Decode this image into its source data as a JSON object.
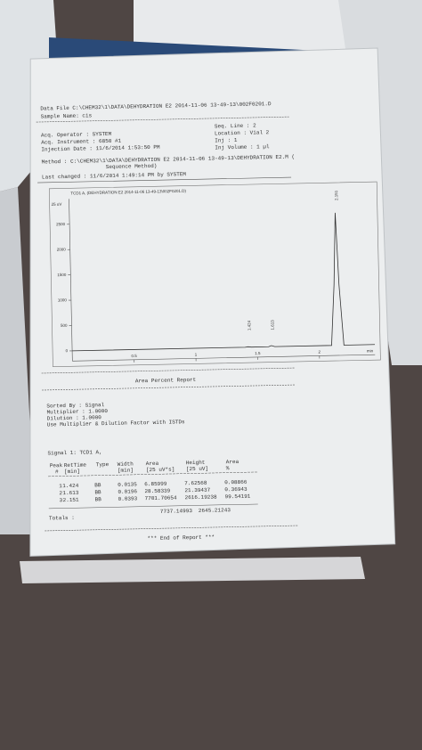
{
  "header": {
    "data_file": "Data File C:\\CHEM32\\1\\DATA\\DEHYDRATION E2 2014-11-06 13-49-13\\002F0201.D",
    "sample_name": "Sample Name: cis"
  },
  "meta": {
    "left": [
      "Acq. Operator   : SYSTEM",
      "Acq. Instrument : 6850 #1",
      "Injection Date  : 11/6/2014 1:53:50 PM"
    ],
    "right": [
      "Seq. Line :  2",
      "Location : Vial 2",
      "Inj :  1",
      "Inj Volume : 1 µl"
    ],
    "method": [
      "Method          : C:\\CHEM32\\1\\DATA\\DEHYDRATION E2 2014-11-06 13-49-13\\DEHYDRATION E2.M (",
      "Sequence Method)"
    ],
    "last_changed": "Last changed    : 11/6/2014 1:49:14 PM by SYSTEM"
  },
  "chart_data": {
    "type": "line",
    "title": "TCD1 A, (DEHYDRATION E2 2014-11-06 13-49-13\\002F0201.D)",
    "y_label": "25 uV",
    "x_label": "min",
    "x": [
      0,
      1.4,
      1.424,
      1.45,
      1.59,
      1.613,
      1.64,
      2.1,
      2.13,
      2.151,
      2.17,
      2.2,
      2.45
    ],
    "series": [
      {
        "name": "TCD1 A",
        "color": "#333333",
        "values": [
          0,
          0,
          8,
          0,
          0,
          21,
          0,
          0,
          1200,
          2616,
          1200,
          0,
          0
        ]
      }
    ],
    "xlim": [
      0,
      2.45
    ],
    "ylim": [
      -200,
      3000
    ],
    "xticks": [
      0.5,
      1,
      1.5,
      2
    ],
    "yticks": [
      0,
      500,
      1000,
      1500,
      2000,
      2500
    ],
    "annotations": [
      1.424,
      1.613,
      2.151
    ]
  },
  "report": {
    "title": "Area Percent Report",
    "settings": [
      "Sorted By        :      Signal",
      "Multiplier       :      1.0000",
      "Dilution         :      1.0000",
      "Use Multiplier & Dilution Factor with ISTDs"
    ],
    "signal": "Signal 1: TCD1 A,",
    "table": {
      "header1": [
        "Peak",
        "RetTime",
        "Type",
        "Width",
        "Area",
        "Height",
        "Area"
      ],
      "header2": [
        "#",
        "[min]",
        "",
        "[min]",
        "[25 uV*s]",
        "[25 uV]",
        "%"
      ],
      "rows": [
        [
          "1",
          "1.424",
          "BB",
          "0.0135",
          "6.85999",
          "7.62568",
          "0.08866"
        ],
        [
          "2",
          "1.613",
          "BB",
          "0.0196",
          "28.58339",
          "21.39437",
          "0.36943"
        ],
        [
          "3",
          "2.151",
          "BB",
          "0.0393",
          "7701.70654",
          "2616.19238",
          "99.54191"
        ]
      ],
      "totals_label": "Totals :",
      "totals": [
        "7737.14993",
        "2645.21243"
      ]
    },
    "end": "*** End of Report ***"
  }
}
